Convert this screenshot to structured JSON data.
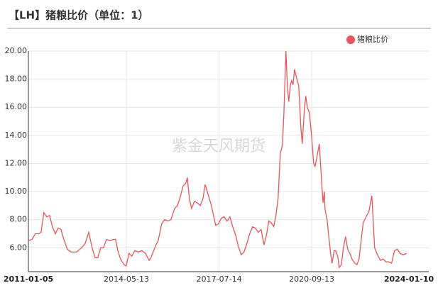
{
  "chart_data": {
    "type": "line",
    "title": "【LH】猪粮比价（单位：1）",
    "watermark": "紫金天风期货",
    "legend": "top-right",
    "grid": true,
    "xlim": [
      "2011-01-05",
      "2024-01-10"
    ],
    "xticks": [
      "2011-01-05",
      "2014-05-13",
      "2017-07-14",
      "2020-09-13",
      "2024-01-10"
    ],
    "ylim": [
      4.3,
      20
    ],
    "yticks": [
      {
        "value": 6,
        "label": "6.00"
      },
      {
        "value": 8,
        "label": "8.00"
      },
      {
        "value": 10,
        "label": "10.00"
      },
      {
        "value": 12,
        "label": "12.00"
      },
      {
        "value": 14,
        "label": "14.00"
      },
      {
        "value": 16,
        "label": "16.00"
      },
      {
        "value": 18,
        "label": "18.00"
      },
      {
        "value": 20,
        "label": "20.00"
      }
    ],
    "x": [
      "2011-01-05",
      "2011-02-19",
      "2011-04-02",
      "2011-05-16",
      "2011-06-12",
      "2011-07-17",
      "2011-08-22",
      "2011-09-27",
      "2011-11-01",
      "2011-12-07",
      "2012-01-12",
      "2012-02-17",
      "2012-03-22",
      "2012-05-05",
      "2012-06-19",
      "2012-08-29",
      "2012-10-30",
      "2012-12-14",
      "2013-01-28",
      "2013-03-11",
      "2013-04-16",
      "2013-05-21",
      "2013-06-26",
      "2013-07-31",
      "2013-09-06",
      "2013-10-20",
      "2013-12-03",
      "2013-12-29",
      "2014-01-26",
      "2014-03-01",
      "2014-04-14",
      "2014-05-10",
      "2014-06-15",
      "2014-07-20",
      "2014-08-25",
      "2014-10-09",
      "2014-11-22",
      "2015-01-06",
      "2015-02-20",
      "2015-03-17",
      "2015-04-12",
      "2015-05-17",
      "2015-06-14",
      "2015-07-28",
      "2015-09-02",
      "2015-10-16",
      "2015-11-21",
      "2016-01-05",
      "2016-02-10",
      "2016-03-15",
      "2016-04-20",
      "2016-05-25",
      "2016-06-12",
      "2016-07-08",
      "2016-08-04",
      "2016-09-09",
      "2016-10-14",
      "2016-11-20",
      "2016-12-25",
      "2017-01-21",
      "2017-03-04",
      "2017-04-09",
      "2017-05-05",
      "2017-06-01",
      "2017-07-06",
      "2017-08-11",
      "2017-09-16",
      "2017-10-21",
      "2017-11-26",
      "2017-12-31",
      "2018-02-06",
      "2018-03-11",
      "2018-04-16",
      "2018-05-21",
      "2018-06-26",
      "2018-07-31",
      "2018-09-06",
      "2018-10-11",
      "2018-11-16",
      "2018-12-21",
      "2019-01-26",
      "2019-03-01",
      "2019-03-27",
      "2019-04-23",
      "2019-05-28",
      "2019-06-24",
      "2019-07-21",
      "2019-08-17",
      "2019-09-13",
      "2019-10-01",
      "2019-10-27",
      "2019-11-14",
      "2019-12-01",
      "2019-12-19",
      "2020-01-06",
      "2020-01-24",
      "2020-02-11",
      "2020-03-08",
      "2020-04-04",
      "2020-05-01",
      "2020-05-18",
      "2020-06-14",
      "2020-07-01",
      "2020-07-19",
      "2020-08-15",
      "2020-09-11",
      "2020-10-07",
      "2020-10-25",
      "2020-11-21",
      "2020-12-17",
      "2021-01-05",
      "2021-02-01",
      "2021-02-18",
      "2021-02-27",
      "2021-03-24",
      "2021-04-20",
      "2021-05-07",
      "2021-05-25",
      "2021-06-21",
      "2021-07-08",
      "2021-08-04",
      "2021-08-22",
      "2021-09-18",
      "2021-10-14",
      "2021-11-10",
      "2021-12-07",
      "2022-01-03",
      "2022-01-29",
      "2022-03-05",
      "2022-04-01",
      "2022-04-27",
      "2022-05-23",
      "2022-06-19",
      "2022-07-24",
      "2022-08-29",
      "2022-10-04",
      "2022-11-08",
      "2022-12-14",
      "2023-01-19",
      "2023-02-23",
      "2023-03-29",
      "2023-05-04",
      "2023-06-08",
      "2023-07-14",
      "2023-08-18",
      "2023-09-23",
      "2023-10-29",
      "2023-12-12"
    ],
    "series": [
      {
        "name": "猪粮比价",
        "color": "#f0525a",
        "values": [
          6.5,
          6.6,
          7.0,
          7.0,
          7.1,
          8.5,
          8.2,
          8.3,
          7.5,
          7.0,
          7.4,
          7.3,
          6.6,
          5.9,
          5.7,
          5.7,
          6.0,
          6.3,
          7.1,
          6.0,
          5.3,
          5.3,
          6.0,
          6.0,
          6.6,
          6.5,
          6.6,
          6.6,
          5.8,
          5.2,
          4.8,
          4.7,
          5.6,
          5.4,
          5.8,
          5.7,
          5.8,
          5.6,
          5.1,
          5.3,
          5.7,
          6.2,
          6.5,
          7.7,
          8.0,
          7.9,
          8.0,
          8.8,
          9.0,
          9.6,
          10.4,
          10.6,
          11.0,
          9.5,
          8.8,
          9.3,
          9.2,
          9.0,
          9.5,
          10.5,
          9.7,
          9.0,
          8.3,
          7.6,
          7.7,
          8.1,
          8.2,
          7.9,
          8.2,
          7.5,
          6.9,
          6.1,
          5.5,
          5.7,
          6.3,
          7.0,
          7.5,
          7.4,
          7.1,
          7.3,
          6.2,
          7.0,
          7.9,
          7.8,
          7.5,
          8.3,
          9.5,
          12.7,
          13.3,
          15.5,
          20.0,
          17.5,
          16.4,
          17.5,
          17.9,
          17.6,
          18.7,
          18.1,
          17.5,
          14.5,
          13.4,
          15.9,
          16.8,
          16.0,
          15.6,
          14.0,
          12.0,
          11.8,
          12.6,
          13.4,
          11.6,
          9.2,
          10.0,
          8.7,
          8.0,
          6.5,
          5.6,
          4.9,
          5.8,
          5.8,
          5.4,
          4.6,
          4.8,
          6.0,
          6.8,
          5.9,
          5.6,
          5.2,
          4.9,
          4.8,
          5.2,
          6.5,
          7.8,
          8.2,
          8.6,
          9.7,
          6.0,
          5.5,
          5.1,
          5.2,
          5.0,
          5.0,
          4.9,
          5.8,
          5.9,
          5.6,
          5.5,
          5.6
        ]
      }
    ]
  }
}
